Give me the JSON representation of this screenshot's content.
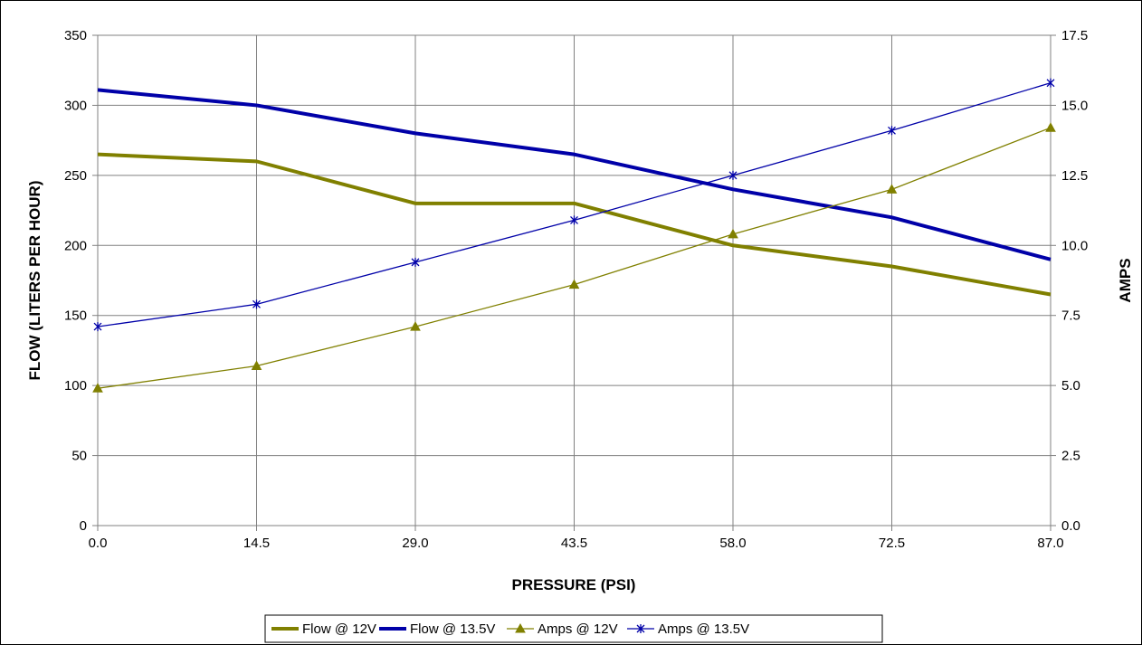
{
  "chart_data": {
    "type": "line",
    "title": "",
    "xlabel": "PRESSURE (PSI)",
    "ylabel": "FLOW (LITERS PER HOUR)",
    "y2label": "AMPS",
    "x": [
      0.0,
      14.5,
      29.0,
      43.5,
      58.0,
      72.5,
      87.0
    ],
    "x_tick_labels": [
      "0.0",
      "14.5",
      "29.0",
      "43.5",
      "58.0",
      "72.5",
      "87.0"
    ],
    "xlim": [
      0,
      87
    ],
    "ylim": [
      0,
      350
    ],
    "y_tick_labels": [
      "0",
      "50",
      "100",
      "150",
      "200",
      "250",
      "300",
      "350"
    ],
    "y2lim": [
      0,
      17.5
    ],
    "y2_tick_labels": [
      "0.0",
      "2.5",
      "5.0",
      "7.5",
      "10.0",
      "12.5",
      "15.0",
      "17.5"
    ],
    "grid": true,
    "legend_position": "bottom",
    "series": [
      {
        "name": "Flow @ 12V",
        "axis": "left",
        "color": "#808000",
        "marker": "none",
        "width": 4,
        "values": [
          265,
          260,
          230,
          230,
          200,
          185,
          165
        ]
      },
      {
        "name": "Flow @ 13.5V",
        "axis": "left",
        "color": "#0000a8",
        "marker": "none",
        "width": 4,
        "values": [
          311,
          300,
          280,
          265,
          240,
          220,
          190
        ]
      },
      {
        "name": "Amps @ 12V",
        "axis": "right",
        "color": "#808000",
        "marker": "triangle",
        "width": 1.3,
        "values": [
          4.9,
          5.7,
          7.1,
          8.6,
          10.4,
          12.0,
          14.2
        ]
      },
      {
        "name": "Amps @ 13.5V",
        "axis": "right",
        "color": "#0000a8",
        "marker": "star",
        "width": 1.3,
        "values": [
          7.1,
          7.9,
          9.4,
          10.9,
          12.5,
          14.1,
          15.8
        ]
      }
    ]
  }
}
